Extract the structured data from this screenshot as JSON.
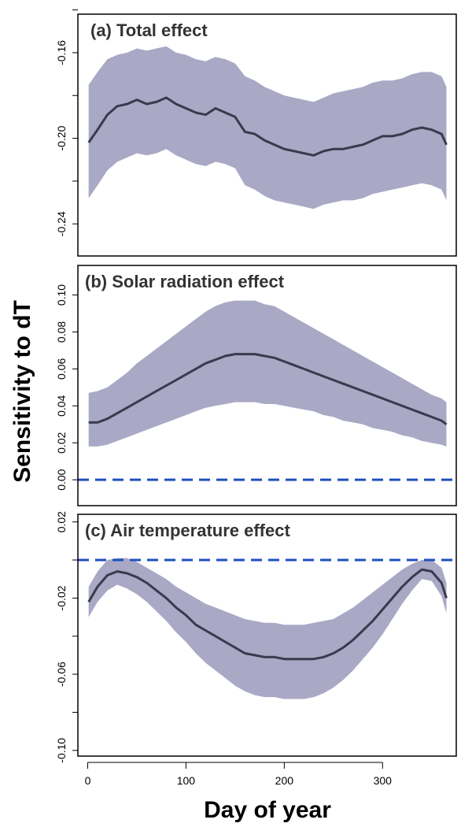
{
  "figure": {
    "ylabel": "Sensitivity to dT",
    "xlabel": "Day of year",
    "xticks": [
      0,
      100,
      200,
      300
    ]
  },
  "colors": {
    "band": "#a9a9c6",
    "line": "#3a3a4c",
    "ref": "#1f4fbf",
    "frame": "#000000"
  },
  "chart_data": [
    {
      "type": "line",
      "title": "(a) Total effect",
      "xlim": [
        -10,
        375
      ],
      "ylim": [
        -0.255,
        -0.142
      ],
      "yticks": [
        -0.24,
        -0.2,
        -0.16
      ],
      "ytick_labels": [
        "-0.24",
        "-0.20",
        "-0.16"
      ],
      "yminor": [
        -0.22,
        -0.18,
        -0.14
      ],
      "reference_line": null,
      "series": [
        {
          "role": "mean",
          "x": [
            1,
            10,
            20,
            30,
            40,
            50,
            60,
            70,
            80,
            90,
            100,
            110,
            120,
            130,
            140,
            150,
            160,
            170,
            180,
            190,
            200,
            210,
            220,
            230,
            240,
            250,
            260,
            270,
            280,
            290,
            300,
            310,
            320,
            330,
            340,
            350,
            360,
            365
          ],
          "y": [
            -0.202,
            -0.196,
            -0.189,
            -0.185,
            -0.184,
            -0.182,
            -0.184,
            -0.183,
            -0.181,
            -0.184,
            -0.186,
            -0.188,
            -0.189,
            -0.186,
            -0.188,
            -0.19,
            -0.197,
            -0.198,
            -0.201,
            -0.203,
            -0.205,
            -0.206,
            -0.207,
            -0.208,
            -0.206,
            -0.205,
            -0.205,
            -0.204,
            -0.203,
            -0.201,
            -0.199,
            -0.199,
            -0.198,
            -0.196,
            -0.195,
            -0.196,
            -0.198,
            -0.203
          ]
        },
        {
          "role": "upper",
          "x": [
            1,
            10,
            20,
            30,
            40,
            50,
            60,
            70,
            80,
            90,
            100,
            110,
            120,
            130,
            140,
            150,
            160,
            170,
            180,
            190,
            200,
            210,
            220,
            230,
            240,
            250,
            260,
            270,
            280,
            290,
            300,
            310,
            320,
            330,
            340,
            350,
            360,
            365
          ],
          "y": [
            -0.175,
            -0.169,
            -0.163,
            -0.161,
            -0.16,
            -0.158,
            -0.159,
            -0.158,
            -0.157,
            -0.16,
            -0.161,
            -0.163,
            -0.164,
            -0.162,
            -0.163,
            -0.165,
            -0.171,
            -0.173,
            -0.176,
            -0.178,
            -0.18,
            -0.181,
            -0.182,
            -0.183,
            -0.181,
            -0.179,
            -0.178,
            -0.177,
            -0.176,
            -0.174,
            -0.173,
            -0.173,
            -0.172,
            -0.17,
            -0.169,
            -0.169,
            -0.171,
            -0.176
          ]
        },
        {
          "role": "lower",
          "x": [
            1,
            10,
            20,
            30,
            40,
            50,
            60,
            70,
            80,
            90,
            100,
            110,
            120,
            130,
            140,
            150,
            160,
            170,
            180,
            190,
            200,
            210,
            220,
            230,
            240,
            250,
            260,
            270,
            280,
            290,
            300,
            310,
            320,
            330,
            340,
            350,
            360,
            365
          ],
          "y": [
            -0.228,
            -0.222,
            -0.215,
            -0.211,
            -0.209,
            -0.207,
            -0.208,
            -0.207,
            -0.205,
            -0.208,
            -0.21,
            -0.212,
            -0.213,
            -0.211,
            -0.212,
            -0.214,
            -0.222,
            -0.224,
            -0.227,
            -0.229,
            -0.23,
            -0.231,
            -0.232,
            -0.233,
            -0.231,
            -0.23,
            -0.229,
            -0.229,
            -0.228,
            -0.226,
            -0.225,
            -0.224,
            -0.223,
            -0.222,
            -0.221,
            -0.222,
            -0.224,
            -0.229
          ]
        }
      ]
    },
    {
      "type": "line",
      "title": "(b) Solar radiation effect",
      "xlim": [
        -10,
        375
      ],
      "ylim": [
        -0.014,
        0.116
      ],
      "yticks": [
        0.0,
        0.02,
        0.04,
        0.06,
        0.08,
        0.1
      ],
      "ytick_labels": [
        "0.00",
        "0.02",
        "0.04",
        "0.06",
        "0.08",
        "0.10"
      ],
      "yminor": [],
      "reference_line": 0.0,
      "series": [
        {
          "role": "mean",
          "x": [
            1,
            10,
            20,
            30,
            40,
            50,
            60,
            70,
            80,
            90,
            100,
            110,
            120,
            130,
            140,
            150,
            160,
            170,
            180,
            190,
            200,
            210,
            220,
            230,
            240,
            250,
            260,
            270,
            280,
            290,
            300,
            310,
            320,
            330,
            340,
            350,
            360,
            365
          ],
          "y": [
            0.031,
            0.031,
            0.033,
            0.036,
            0.039,
            0.042,
            0.045,
            0.048,
            0.051,
            0.054,
            0.057,
            0.06,
            0.063,
            0.065,
            0.067,
            0.068,
            0.068,
            0.068,
            0.067,
            0.066,
            0.064,
            0.062,
            0.06,
            0.058,
            0.056,
            0.054,
            0.052,
            0.05,
            0.048,
            0.046,
            0.044,
            0.042,
            0.04,
            0.038,
            0.036,
            0.034,
            0.032,
            0.03
          ]
        },
        {
          "role": "upper",
          "x": [
            1,
            10,
            20,
            30,
            40,
            50,
            60,
            70,
            80,
            90,
            100,
            110,
            120,
            130,
            140,
            150,
            160,
            170,
            180,
            190,
            200,
            210,
            220,
            230,
            240,
            250,
            260,
            270,
            280,
            290,
            300,
            310,
            320,
            330,
            340,
            350,
            360,
            365
          ],
          "y": [
            0.047,
            0.048,
            0.05,
            0.054,
            0.058,
            0.063,
            0.067,
            0.071,
            0.075,
            0.079,
            0.083,
            0.087,
            0.091,
            0.094,
            0.096,
            0.097,
            0.097,
            0.097,
            0.095,
            0.094,
            0.091,
            0.088,
            0.085,
            0.082,
            0.079,
            0.076,
            0.073,
            0.07,
            0.067,
            0.064,
            0.061,
            0.058,
            0.055,
            0.052,
            0.049,
            0.046,
            0.044,
            0.042
          ]
        },
        {
          "role": "lower",
          "x": [
            1,
            10,
            20,
            30,
            40,
            50,
            60,
            70,
            80,
            90,
            100,
            110,
            120,
            130,
            140,
            150,
            160,
            170,
            180,
            190,
            200,
            210,
            220,
            230,
            240,
            250,
            260,
            270,
            280,
            290,
            300,
            310,
            320,
            330,
            340,
            350,
            360,
            365
          ],
          "y": [
            0.018,
            0.018,
            0.019,
            0.021,
            0.023,
            0.025,
            0.027,
            0.029,
            0.031,
            0.033,
            0.035,
            0.037,
            0.039,
            0.04,
            0.041,
            0.042,
            0.042,
            0.042,
            0.041,
            0.041,
            0.04,
            0.039,
            0.038,
            0.037,
            0.035,
            0.034,
            0.032,
            0.031,
            0.03,
            0.028,
            0.027,
            0.026,
            0.024,
            0.023,
            0.021,
            0.02,
            0.019,
            0.018
          ]
        }
      ]
    },
    {
      "type": "line",
      "title": "(c) Air temperature effect",
      "xlim": [
        -10,
        375
      ],
      "ylim": [
        -0.103,
        0.024
      ],
      "yticks": [
        -0.1,
        -0.06,
        -0.02,
        0.02
      ],
      "ytick_labels": [
        "-0.10",
        "-0.06",
        "-0.02",
        "0.02"
      ],
      "yminor": [
        -0.08,
        -0.04,
        0.0
      ],
      "reference_line": 0.0,
      "series": [
        {
          "role": "mean",
          "x": [
            1,
            10,
            20,
            30,
            40,
            50,
            60,
            70,
            80,
            90,
            100,
            110,
            120,
            130,
            140,
            150,
            160,
            170,
            180,
            190,
            200,
            210,
            220,
            230,
            240,
            250,
            260,
            270,
            280,
            290,
            300,
            310,
            320,
            330,
            340,
            350,
            360,
            365
          ],
          "y": [
            -0.022,
            -0.014,
            -0.008,
            -0.006,
            -0.007,
            -0.009,
            -0.012,
            -0.016,
            -0.02,
            -0.025,
            -0.029,
            -0.034,
            -0.037,
            -0.04,
            -0.043,
            -0.046,
            -0.049,
            -0.05,
            -0.051,
            -0.051,
            -0.052,
            -0.052,
            -0.052,
            -0.052,
            -0.051,
            -0.049,
            -0.046,
            -0.042,
            -0.037,
            -0.032,
            -0.026,
            -0.02,
            -0.014,
            -0.009,
            -0.005,
            -0.006,
            -0.012,
            -0.02
          ]
        },
        {
          "role": "upper",
          "x": [
            1,
            10,
            20,
            30,
            40,
            50,
            60,
            70,
            80,
            90,
            100,
            110,
            120,
            130,
            140,
            150,
            160,
            170,
            180,
            190,
            200,
            210,
            220,
            230,
            240,
            250,
            260,
            270,
            280,
            290,
            300,
            310,
            320,
            330,
            340,
            350,
            360,
            365
          ],
          "y": [
            -0.014,
            -0.006,
            0.0,
            0.001,
            0.001,
            -0.001,
            -0.004,
            -0.007,
            -0.01,
            -0.014,
            -0.017,
            -0.02,
            -0.023,
            -0.025,
            -0.027,
            -0.029,
            -0.031,
            -0.032,
            -0.033,
            -0.033,
            -0.034,
            -0.034,
            -0.034,
            -0.033,
            -0.032,
            -0.031,
            -0.028,
            -0.025,
            -0.021,
            -0.017,
            -0.013,
            -0.009,
            -0.005,
            -0.002,
            0.0,
            0.0,
            -0.004,
            -0.012
          ]
        },
        {
          "role": "lower",
          "x": [
            1,
            10,
            20,
            30,
            40,
            50,
            60,
            70,
            80,
            90,
            100,
            110,
            120,
            130,
            140,
            150,
            160,
            170,
            180,
            190,
            200,
            210,
            220,
            230,
            240,
            250,
            260,
            270,
            280,
            290,
            300,
            310,
            320,
            330,
            340,
            350,
            360,
            365
          ],
          "y": [
            -0.03,
            -0.022,
            -0.016,
            -0.013,
            -0.015,
            -0.018,
            -0.022,
            -0.027,
            -0.032,
            -0.038,
            -0.043,
            -0.049,
            -0.054,
            -0.058,
            -0.062,
            -0.066,
            -0.069,
            -0.071,
            -0.072,
            -0.072,
            -0.073,
            -0.073,
            -0.073,
            -0.072,
            -0.07,
            -0.067,
            -0.063,
            -0.058,
            -0.052,
            -0.046,
            -0.039,
            -0.031,
            -0.023,
            -0.016,
            -0.01,
            -0.011,
            -0.019,
            -0.028
          ]
        }
      ]
    }
  ]
}
